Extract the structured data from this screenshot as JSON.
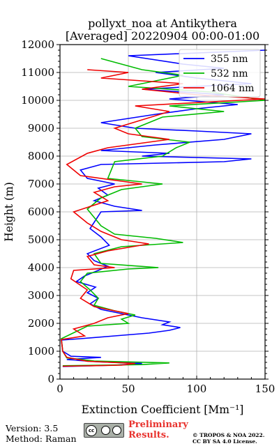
{
  "chart_data": {
    "type": "line",
    "title": "pollyxt_noa at Antikythera",
    "subtitle": "[Averaged] 20220904 00:00-01:00",
    "xlabel": "Extinction Coefficient [Mm⁻¹]",
    "ylabel": "Height (m)",
    "xlim": [
      0,
      150
    ],
    "ylim": [
      0,
      12000
    ],
    "xticks": [
      0,
      50,
      100,
      150
    ],
    "yticks": [
      0,
      1000,
      2000,
      3000,
      4000,
      5000,
      6000,
      7000,
      8000,
      9000,
      10000,
      11000,
      12000
    ],
    "grid": true,
    "legend_position": "top-right",
    "series": [
      {
        "name": "355 nm",
        "color": "#0000ff",
        "points": [
          [
            2,
            450
          ],
          [
            40,
            500
          ],
          [
            60,
            560
          ],
          [
            28,
            620
          ],
          [
            5,
            700
          ],
          [
            30,
            780
          ],
          [
            8,
            820
          ],
          [
            2,
            1000
          ],
          [
            1,
            1400
          ],
          [
            15,
            1450
          ],
          [
            40,
            1550
          ],
          [
            65,
            1650
          ],
          [
            80,
            1750
          ],
          [
            88,
            1850
          ],
          [
            75,
            1950
          ],
          [
            80,
            2050
          ],
          [
            60,
            2200
          ],
          [
            45,
            2350
          ],
          [
            30,
            2500
          ],
          [
            22,
            2700
          ],
          [
            28,
            2900
          ],
          [
            20,
            3100
          ],
          [
            26,
            3300
          ],
          [
            12,
            3500
          ],
          [
            18,
            3700
          ],
          [
            28,
            3900
          ],
          [
            35,
            4050
          ],
          [
            25,
            4250
          ],
          [
            20,
            4500
          ],
          [
            36,
            4800
          ],
          [
            30,
            5100
          ],
          [
            22,
            5400
          ],
          [
            26,
            5700
          ],
          [
            30,
            6000
          ],
          [
            60,
            6050
          ],
          [
            40,
            6200
          ],
          [
            25,
            6400
          ],
          [
            35,
            6600
          ],
          [
            28,
            6850
          ],
          [
            40,
            7000
          ],
          [
            20,
            7200
          ],
          [
            15,
            7500
          ],
          [
            30,
            7700
          ],
          [
            120,
            7800
          ],
          [
            140,
            7900
          ],
          [
            60,
            8000
          ],
          [
            80,
            8100
          ],
          [
            30,
            8200
          ],
          [
            70,
            8400
          ],
          [
            120,
            8600
          ],
          [
            140,
            8800
          ],
          [
            100,
            8900
          ],
          [
            55,
            9000
          ],
          [
            30,
            9200
          ],
          [
            70,
            9500
          ],
          [
            100,
            9700
          ],
          [
            130,
            9850
          ],
          [
            80,
            10050
          ],
          [
            120,
            10200
          ],
          [
            60,
            10400
          ],
          [
            140,
            10600
          ],
          [
            100,
            10800
          ],
          [
            70,
            11000
          ],
          [
            120,
            11150
          ],
          [
            90,
            11300
          ],
          [
            50,
            11600
          ],
          [
            150,
            11800
          ]
        ]
      },
      {
        "name": "532 nm",
        "color": "#00bb00",
        "points": [
          [
            2,
            480
          ],
          [
            60,
            520
          ],
          [
            80,
            580
          ],
          [
            25,
            650
          ],
          [
            5,
            760
          ],
          [
            2,
            1000
          ],
          [
            1,
            1450
          ],
          [
            20,
            1900
          ],
          [
            50,
            2000
          ],
          [
            45,
            2150
          ],
          [
            55,
            2300
          ],
          [
            40,
            2450
          ],
          [
            25,
            2650
          ],
          [
            28,
            2900
          ],
          [
            22,
            3200
          ],
          [
            15,
            3500
          ],
          [
            20,
            3800
          ],
          [
            50,
            3950
          ],
          [
            72,
            4000
          ],
          [
            30,
            4150
          ],
          [
            25,
            4500
          ],
          [
            45,
            4750
          ],
          [
            90,
            4900
          ],
          [
            70,
            5050
          ],
          [
            40,
            5200
          ],
          [
            30,
            5500
          ],
          [
            25,
            5800
          ],
          [
            20,
            6100
          ],
          [
            30,
            6500
          ],
          [
            45,
            6800
          ],
          [
            75,
            7000
          ],
          [
            35,
            7200
          ],
          [
            40,
            7800
          ],
          [
            75,
            8000
          ],
          [
            85,
            8300
          ],
          [
            95,
            8500
          ],
          [
            60,
            8700
          ],
          [
            55,
            9000
          ],
          [
            75,
            9400
          ],
          [
            120,
            9600
          ],
          [
            80,
            9800
          ],
          [
            150,
            10000
          ],
          [
            110,
            10300
          ],
          [
            50,
            10500
          ],
          [
            70,
            10700
          ],
          [
            90,
            10900
          ],
          [
            60,
            11100
          ],
          [
            30,
            11500
          ]
        ]
      },
      {
        "name": "1064 nm",
        "color": "#ee0000",
        "points": [
          [
            2,
            460
          ],
          [
            45,
            500
          ],
          [
            55,
            560
          ],
          [
            20,
            640
          ],
          [
            5,
            780
          ],
          [
            2,
            1000
          ],
          [
            1,
            1420
          ],
          [
            18,
            1550
          ],
          [
            10,
            1800
          ],
          [
            25,
            2000
          ],
          [
            35,
            2200
          ],
          [
            50,
            2350
          ],
          [
            25,
            2600
          ],
          [
            15,
            2900
          ],
          [
            20,
            3200
          ],
          [
            8,
            3600
          ],
          [
            10,
            3900
          ],
          [
            40,
            4000
          ],
          [
            25,
            4100
          ],
          [
            20,
            4400
          ],
          [
            35,
            4600
          ],
          [
            65,
            4850
          ],
          [
            45,
            5000
          ],
          [
            30,
            5300
          ],
          [
            20,
            5600
          ],
          [
            10,
            6000
          ],
          [
            35,
            6400
          ],
          [
            25,
            6700
          ],
          [
            40,
            6900
          ],
          [
            60,
            7000
          ],
          [
            15,
            7300
          ],
          [
            5,
            7700
          ],
          [
            20,
            8100
          ],
          [
            35,
            8300
          ],
          [
            80,
            8600
          ],
          [
            50,
            8800
          ],
          [
            40,
            9000
          ],
          [
            60,
            9300
          ],
          [
            80,
            9600
          ],
          [
            55,
            9800
          ],
          [
            150,
            10050
          ],
          [
            100,
            10200
          ],
          [
            60,
            10400
          ],
          [
            90,
            10600
          ],
          [
            30,
            10800
          ],
          [
            50,
            11000
          ],
          [
            20,
            11100
          ]
        ]
      }
    ]
  },
  "footer": {
    "version": "Version: 3.5",
    "method": "Method: Raman",
    "cc_label": "cc",
    "preliminary_line1": "Preliminary",
    "preliminary_line2": "Results.",
    "copyright_line1": "© TROPOS & NOA 2022.",
    "copyright_line2": "CC BY SA 4.0 License."
  }
}
